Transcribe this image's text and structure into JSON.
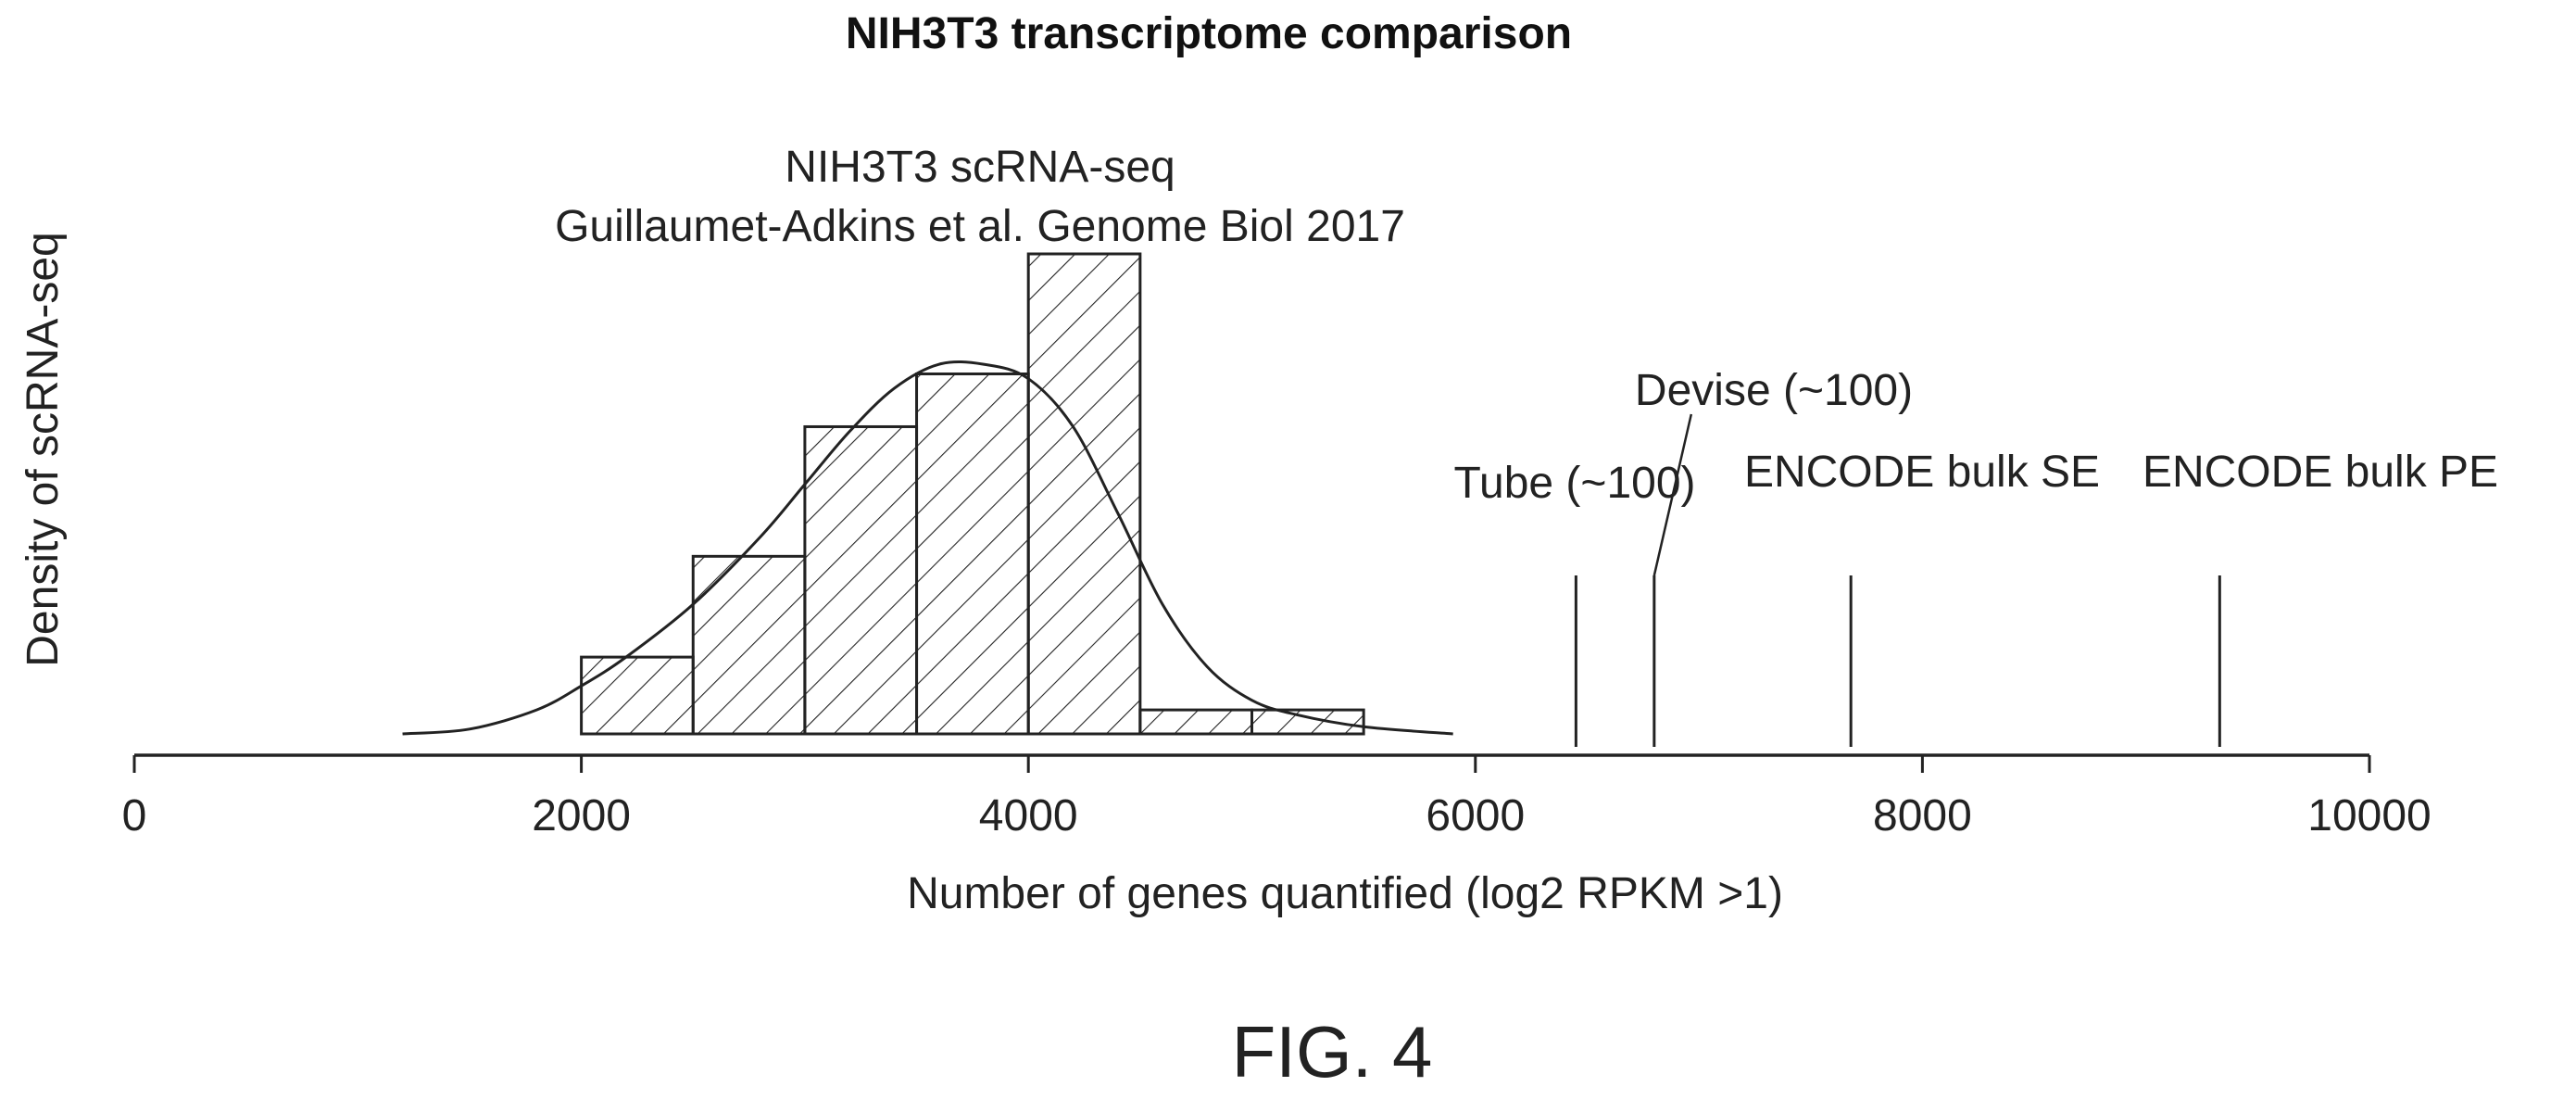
{
  "figure_label": "FIG. 4",
  "chart_data": {
    "type": "bar",
    "title": "NIH3T3 transcriptome comparison",
    "xlabel": "Number of genes quantified (log2 RPKM >1)",
    "ylabel": "Density of scRNA-seq",
    "xlim": [
      0,
      10000
    ],
    "x_ticks": [
      0,
      2000,
      4000,
      6000,
      8000,
      10000
    ],
    "histogram_annotation": [
      "NIH3T3 scRNA-seq",
      "Guillaumet-Adkins et al. Genome Biol 2017"
    ],
    "histogram": {
      "bins": [
        {
          "start": 2000,
          "end": 2500,
          "height": 0.16
        },
        {
          "start": 2500,
          "end": 3000,
          "height": 0.37
        },
        {
          "start": 3000,
          "end": 3500,
          "height": 0.64
        },
        {
          "start": 3500,
          "end": 4000,
          "height": 0.75
        },
        {
          "start": 4000,
          "end": 4500,
          "height": 1.0
        },
        {
          "start": 4500,
          "end": 5000,
          "height": 0.05
        },
        {
          "start": 5000,
          "end": 5500,
          "height": 0.05
        }
      ]
    },
    "density_curve": {
      "x": [
        1200,
        1500,
        1800,
        2000,
        2200,
        2500,
        2800,
        3000,
        3200,
        3400,
        3600,
        3800,
        4000,
        4200,
        4400,
        4600,
        4800,
        5000,
        5200,
        5500,
        5900
      ],
      "y": [
        0.0,
        0.01,
        0.05,
        0.1,
        0.16,
        0.27,
        0.41,
        0.52,
        0.63,
        0.72,
        0.77,
        0.77,
        0.74,
        0.64,
        0.46,
        0.27,
        0.14,
        0.07,
        0.04,
        0.015,
        0.0
      ]
    },
    "reference_lines": [
      {
        "label": "Tube (~100)",
        "x": 6450,
        "height": 0.33
      },
      {
        "label": "Devise (~100)",
        "x": 6800,
        "height": 0.33
      },
      {
        "label": "ENCODE bulk SE",
        "x": 7680,
        "height": 0.33
      },
      {
        "label": "ENCODE bulk PE",
        "x": 9330,
        "height": 0.33
      }
    ],
    "grid": false,
    "legend": "none"
  }
}
